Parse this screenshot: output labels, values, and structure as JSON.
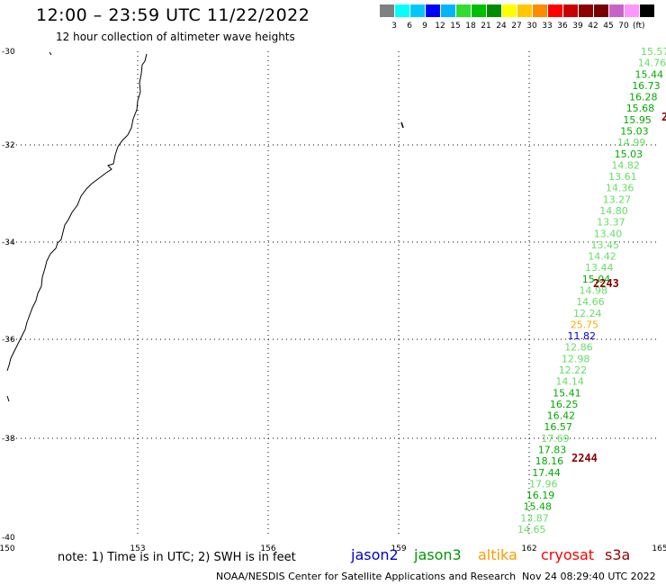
{
  "header": {
    "title": "12:00 – 23:59 UTC 11/22/2022",
    "subtitle": "12 hour collection of altimeter wave heights"
  },
  "colorbar": {
    "colors": [
      "#808080",
      "#00ffff",
      "#00c8ff",
      "#0000ff",
      "#00b4ff",
      "#32dc32",
      "#00be00",
      "#008c00",
      "#ffff00",
      "#ffc800",
      "#ff8c00",
      "#ff0000",
      "#c80000",
      "#8c0000",
      "#780000",
      "#c864c8",
      "#ff96ff",
      "#000000"
    ],
    "labels": [
      "3",
      "6",
      "9",
      "12",
      "15",
      "18",
      "21",
      "24",
      "27",
      "30",
      "33",
      "36",
      "39",
      "42",
      "45",
      "70"
    ],
    "unit": "(ft)"
  },
  "map": {
    "lon_ticks": [
      "150",
      "153",
      "156",
      "159",
      "162",
      "165"
    ],
    "lat_ticks": [
      "-30",
      "-32",
      "-34",
      "-36",
      "-38",
      "-40"
    ],
    "track_labels": [
      {
        "text": "15.57",
        "color": "#66dd66"
      },
      {
        "text": "14.76",
        "color": "#66dd66"
      },
      {
        "text": "15.44",
        "color": "#00aa00"
      },
      {
        "text": "16.73",
        "color": "#00aa00"
      },
      {
        "text": "16.28",
        "color": "#00aa00"
      },
      {
        "text": "15.68",
        "color": "#00aa00"
      },
      {
        "text": "15.95",
        "color": "#00aa00"
      },
      {
        "text": "15.03",
        "color": "#00aa00"
      },
      {
        "text": "14.99",
        "color": "#66dd66"
      },
      {
        "text": "15.03",
        "color": "#00aa00"
      },
      {
        "text": "14.82",
        "color": "#66dd66"
      },
      {
        "text": "13.61",
        "color": "#66dd66"
      },
      {
        "text": "14.36",
        "color": "#66dd66"
      },
      {
        "text": "13.27",
        "color": "#66dd66"
      },
      {
        "text": "14.80",
        "color": "#66dd66"
      },
      {
        "text": "13.37",
        "color": "#66dd66"
      },
      {
        "text": "13.40",
        "color": "#66dd66"
      },
      {
        "text": "13.45",
        "color": "#66dd66"
      },
      {
        "text": "14.42",
        "color": "#66dd66"
      },
      {
        "text": "13.44",
        "color": "#66dd66"
      },
      {
        "text": "15.04",
        "color": "#00aa00"
      },
      {
        "text": "14.98",
        "color": "#66dd66"
      },
      {
        "text": "14.66",
        "color": "#66dd66"
      },
      {
        "text": "12.24",
        "color": "#66dd66"
      },
      {
        "text": "25.75",
        "color": "#ffaa00"
      },
      {
        "text": "11.82",
        "color": "#0000cc"
      },
      {
        "text": "12.86",
        "color": "#66dd66"
      },
      {
        "text": "12.98",
        "color": "#66dd66"
      },
      {
        "text": "12.22",
        "color": "#66dd66"
      },
      {
        "text": "14.14",
        "color": "#66dd66"
      },
      {
        "text": "15.41",
        "color": "#00aa00"
      },
      {
        "text": "16.25",
        "color": "#00aa00"
      },
      {
        "text": "16.42",
        "color": "#00aa00"
      },
      {
        "text": "16.57",
        "color": "#00aa00"
      },
      {
        "text": "17.69",
        "color": "#66dd66"
      },
      {
        "text": "17.83",
        "color": "#00aa00"
      },
      {
        "text": "18.16",
        "color": "#00aa00"
      },
      {
        "text": "17.44",
        "color": "#00aa00"
      },
      {
        "text": "17.96",
        "color": "#66dd66"
      },
      {
        "text": "16.19",
        "color": "#00aa00"
      },
      {
        "text": "15.48",
        "color": "#00aa00"
      },
      {
        "text": "13.87",
        "color": "#66dd66"
      },
      {
        "text": "14.65",
        "color": "#66dd66"
      }
    ],
    "time_labels": [
      "2243",
      "2244",
      "2"
    ]
  },
  "footer": {
    "note": "note:  1) Time is in UTC; 2) SWH is in feet",
    "legend": [
      {
        "name": "jason2",
        "color": "#0000cc"
      },
      {
        "name": "jason3",
        "color": "#009900"
      },
      {
        "name": "altika",
        "color": "#ff9900"
      },
      {
        "name": "cryosat",
        "color": "#ff0000"
      },
      {
        "name": "s3a",
        "color": "#990000"
      }
    ],
    "credit": "NOAA/NESDIS Center for Satellite Applications and Research",
    "timestamp": "Nov 24 08:29:40 UTC 2022"
  }
}
